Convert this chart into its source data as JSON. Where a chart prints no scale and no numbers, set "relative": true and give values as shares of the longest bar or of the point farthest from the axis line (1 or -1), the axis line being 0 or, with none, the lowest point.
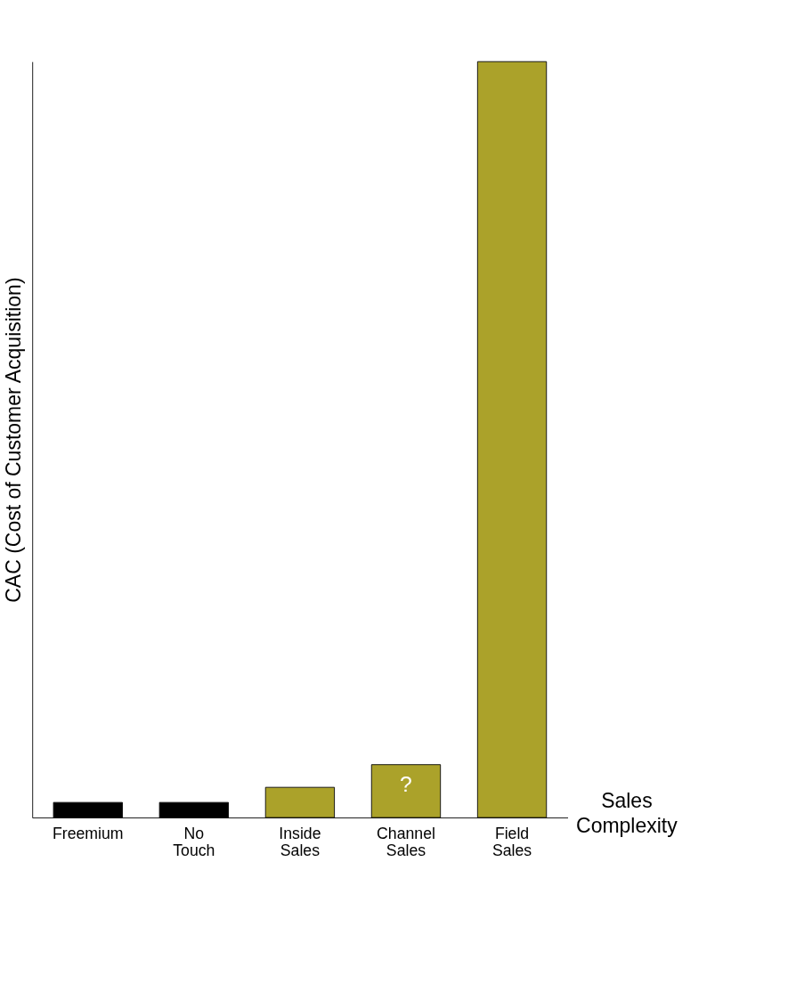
{
  "chart_data": {
    "type": "bar",
    "relative": true,
    "ylabel": "CAC (Cost of Customer Acquisition)",
    "xlabel": "Sales Complexity",
    "categories": [
      "Freemium",
      "No Touch",
      "Inside Sales",
      "Channel Sales",
      "Field Sales"
    ],
    "values": [
      0.02,
      0.02,
      0.04,
      0.07,
      1
    ],
    "colors": [
      "#000000",
      "#000000",
      "#aba22a",
      "#aba22a",
      "#aba22a"
    ],
    "annotations": [
      {
        "text": "?",
        "x": "Channel Sales",
        "y": 0.07
      }
    ],
    "grid": false
  }
}
